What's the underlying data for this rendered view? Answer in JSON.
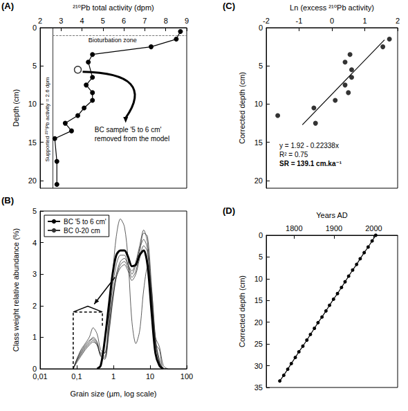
{
  "chart_data": [
    {
      "type": "line",
      "title": "(A)",
      "x_label": "²¹⁰Pb total activity (dpm)",
      "y_label": "Depth (cm)",
      "x": [
        8.7,
        8.5,
        7.3,
        4.5,
        4.3,
        4.5,
        4.2,
        4.5,
        4.5,
        4.1,
        3.8,
        3.2,
        3.5,
        2.7,
        2.8,
        2.8
      ],
      "values": [
        0.5,
        1.5,
        2.5,
        3.5,
        4.5,
        6.5,
        7.5,
        8.5,
        9.5,
        10.5,
        11.5,
        12.5,
        13.5,
        14.5,
        17.5,
        20.5
      ],
      "color": "#000000",
      "marker": "circle",
      "line_style": "solid",
      "xlim": [
        2,
        9
      ],
      "xticks": [
        2,
        3,
        4,
        5,
        6,
        7,
        8,
        9
      ],
      "ylim": [
        0,
        21
      ],
      "yticks": [
        0,
        5,
        10,
        15,
        20
      ],
      "grid": false,
      "removed_point": {
        "x": 3.8,
        "y": 5.5,
        "label": [
          "BC sample '5 to 6 cm'",
          "removed from the model"
        ]
      },
      "supported_activity": {
        "value": 2.6,
        "label": "Supported ²¹⁰Pb activity = 2.6 dpm"
      },
      "bioturbation": {
        "depth": 1,
        "label": "Bioturbation zone"
      }
    },
    {
      "type": "line",
      "title": "(B)",
      "x_label": "Grain size (µm, log scale)",
      "y_label": "Class weight relative abundance (%)",
      "log": "x",
      "legend": "top-left",
      "grid": false,
      "xlim": [
        0.01,
        100
      ],
      "xticks": [
        {
          "value": 0.01,
          "label": "0,01"
        },
        {
          "value": 0.1,
          "label": "0,1"
        },
        1,
        10,
        100
      ],
      "ylim": [
        0,
        5
      ],
      "yticks": [
        0,
        1,
        2,
        3,
        4,
        5
      ],
      "x": [
        0.08,
        0.1,
        0.13,
        0.17,
        0.22,
        0.28,
        0.36,
        0.45,
        0.58,
        0.75,
        0.95,
        1.2,
        1.55,
        2,
        2.5,
        3.2,
        4.1,
        5.2,
        6.7,
        8.5,
        11,
        14,
        18,
        23,
        30
      ],
      "series": [
        {
          "name": "BC '5 to 6 cm'",
          "color": "#000000",
          "line_style": "thick",
          "values": [
            null,
            null,
            null,
            null,
            null,
            null,
            0,
            0.1,
            0.9,
            2,
            3,
            3.6,
            3.75,
            3.75,
            3.55,
            3.25,
            3.3,
            3.6,
            3.75,
            3.3,
            1.8,
            0.5,
            0.1,
            0,
            null
          ]
        },
        {
          "name": "BC 0-20 cm",
          "color": "#333333",
          "line_style": "thin",
          "values": [
            0,
            0.3,
            0.55,
            0.75,
            0.9,
            0.95,
            0.8,
            0.45,
            0.4,
            1.3,
            2.3,
            3.0,
            3.4,
            3.5,
            3.3,
            3.0,
            3.3,
            3.8,
            4.1,
            3.8,
            2.2,
            0.8,
            0.2,
            0,
            0
          ]
        },
        {
          "name": "BC 0-20 cm",
          "color": "#333333",
          "line_style": "thin",
          "values": [
            0,
            0.25,
            0.5,
            0.7,
            0.85,
            1.0,
            0.85,
            0.5,
            0.5,
            1.5,
            2.6,
            3.3,
            3.6,
            3.6,
            3.3,
            3.1,
            3.4,
            3.9,
            4.4,
            4.0,
            2.4,
            0.9,
            0.3,
            0,
            0
          ]
        },
        {
          "name": "BC 0-20 cm",
          "color": "#333333",
          "line_style": "thin",
          "values": [
            0,
            0.2,
            0.4,
            0.6,
            0.75,
            0.85,
            0.75,
            0.4,
            0.3,
            1.1,
            2.1,
            2.9,
            3.3,
            3.4,
            3.2,
            2.9,
            3.1,
            3.7,
            4.3,
            4.2,
            2.6,
            1.0,
            0.7,
            0.1,
            0
          ]
        },
        {
          "name": "BC 0-20 cm",
          "color": "#333333",
          "line_style": "thin",
          "values": [
            0,
            0.3,
            0.6,
            0.8,
            1.0,
            1.3,
            1.1,
            0.6,
            0.5,
            1.6,
            3.0,
            4.2,
            4.75,
            4.5,
            3.5,
            1.5,
            0.8,
            1.2,
            2.5,
            3.2,
            2.5,
            1.0,
            0.2,
            0,
            0
          ]
        },
        {
          "name": "BC 0-20 cm",
          "color": "#333333",
          "line_style": "thin",
          "values": [
            0,
            0.25,
            0.45,
            0.65,
            0.8,
            0.9,
            0.75,
            0.4,
            0.35,
            1.2,
            2.2,
            2.9,
            3.2,
            3.3,
            3.1,
            2.8,
            3.0,
            3.5,
            3.9,
            3.7,
            2.3,
            0.8,
            0.6,
            0,
            0
          ]
        }
      ]
    },
    {
      "type": "scatter",
      "title": "(C)",
      "x_label": "Ln (excess ²¹⁰Pb activity)",
      "y_label": "Corrected depth (cm)",
      "x": [
        1.75,
        1.55,
        0.55,
        0.4,
        0.6,
        0.6,
        0.4,
        0.5,
        0.1,
        -0.55,
        -1.65,
        -0.5
      ],
      "values": [
        1.5,
        2.5,
        3.5,
        4.5,
        5.5,
        6.5,
        7.5,
        8.5,
        9.5,
        10.5,
        11.5,
        12.5
      ],
      "color": "#000000",
      "marker": "circle",
      "xlim": [
        -2,
        2
      ],
      "xticks": [
        -2,
        -1,
        0,
        1,
        2
      ],
      "ylim": [
        0,
        21
      ],
      "yticks": [
        0,
        5,
        10,
        15,
        20
      ],
      "grid": false,
      "fit": {
        "x": [
          -0.9,
          1.6
        ],
        "values": [
          12.7,
          1.6
        ],
        "color": "#000000",
        "equation": "y = 1.92 - 0.22338x",
        "r_squared": "R² = 0.75",
        "rate": "SR = 139.1 cm.ka⁻¹"
      }
    },
    {
      "type": "line",
      "title": "(D)",
      "x_label": "Years AD",
      "y_label": "Corrected depth (cm)",
      "x": [
        2005,
        1996,
        1986,
        1976,
        1966,
        1957,
        1947,
        1937,
        1928,
        1919,
        1909,
        1899,
        1889,
        1880,
        1870,
        1860,
        1851,
        1841,
        1832,
        1822,
        1812,
        1803,
        1793,
        1784,
        1774,
        1764
      ],
      "values": [
        0,
        1.3,
        2.7,
        4,
        5.4,
        6.7,
        8,
        9.4,
        10.7,
        12,
        13.4,
        14.7,
        16.1,
        17.4,
        18.8,
        20.1,
        21.4,
        22.8,
        24.1,
        25.5,
        26.8,
        28.1,
        29.5,
        30.8,
        32.2,
        33.5
      ],
      "color": "#000000",
      "marker": "circle",
      "line_style": "solid",
      "xlim": [
        1730,
        2060
      ],
      "xticks": [
        1800,
        1900,
        2000
      ],
      "ylim": [
        0,
        35
      ],
      "yticks": [
        0,
        5,
        10,
        15,
        20,
        25,
        30,
        35
      ],
      "grid": false
    }
  ]
}
